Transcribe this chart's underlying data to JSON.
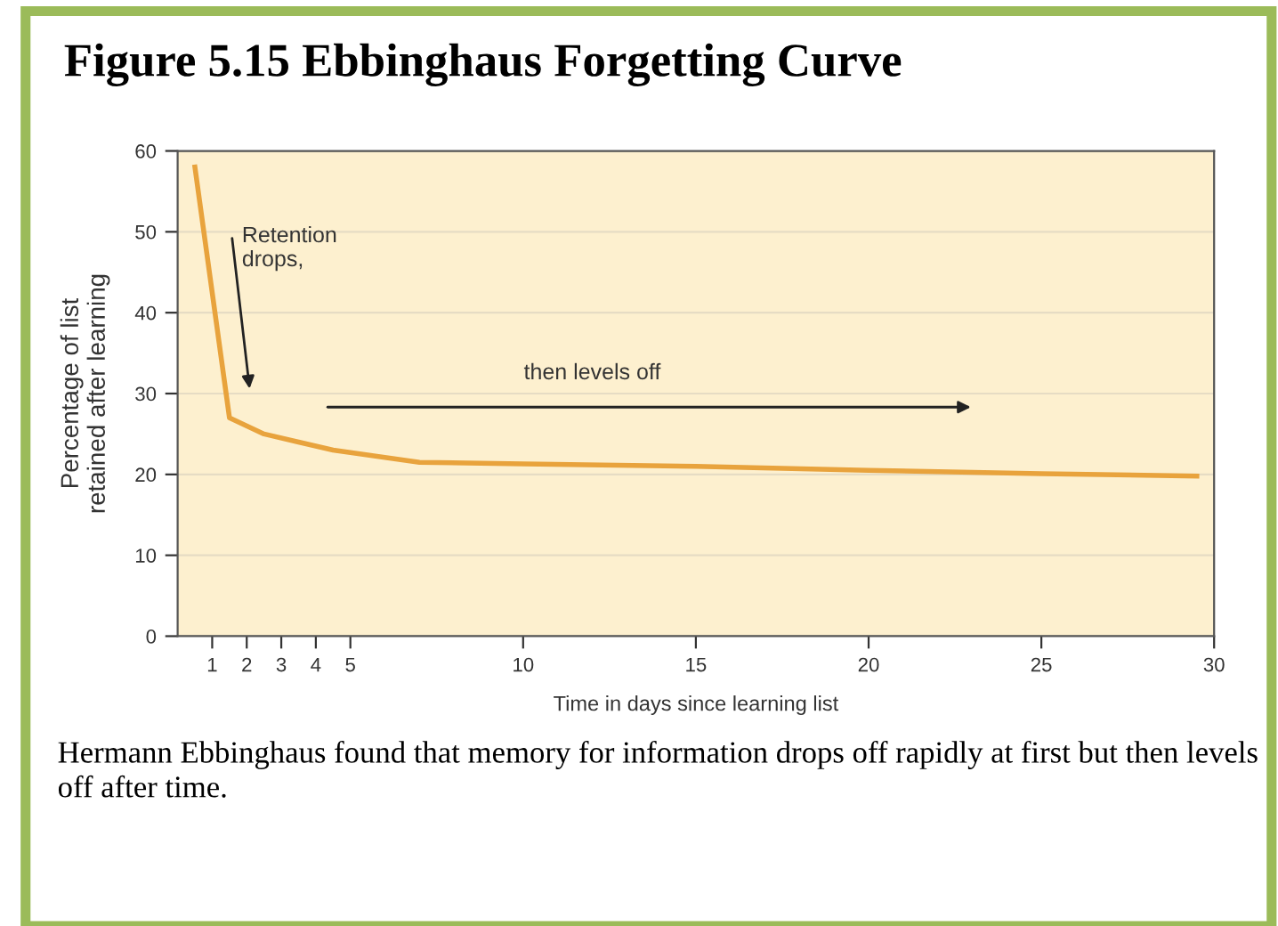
{
  "chart_data": {
    "type": "line",
    "title": "Figure 5.15 Ebbinghaus Forgetting Curve",
    "xlabel": "Time in days since learning list",
    "ylabel": "Percentage of list\nretained after learning",
    "x": [
      0.5,
      1.5,
      2.5,
      3.5,
      4.5,
      7,
      10,
      15,
      20,
      25,
      29.5
    ],
    "series": [
      {
        "color": "#e8a33d",
        "values": [
          58,
          27,
          25,
          24,
          23,
          21.5,
          21.3,
          21,
          20.5,
          20.1,
          19.8
        ]
      }
    ],
    "xlim": [
      0,
      30
    ],
    "xticks": [
      1,
      2,
      3,
      4,
      5,
      10,
      15,
      20,
      25,
      30
    ],
    "ylim": [
      0,
      60
    ],
    "yticks": [
      0,
      10,
      20,
      30,
      40,
      50,
      60
    ],
    "grid": "y",
    "marker": "none",
    "line_style": "solid",
    "annotations": [
      "Retention\ndrops,",
      "then levels off",
      "Hermann Ebbinghaus found that memory for information drops off rapidly at first but then levels off after time."
    ]
  }
}
